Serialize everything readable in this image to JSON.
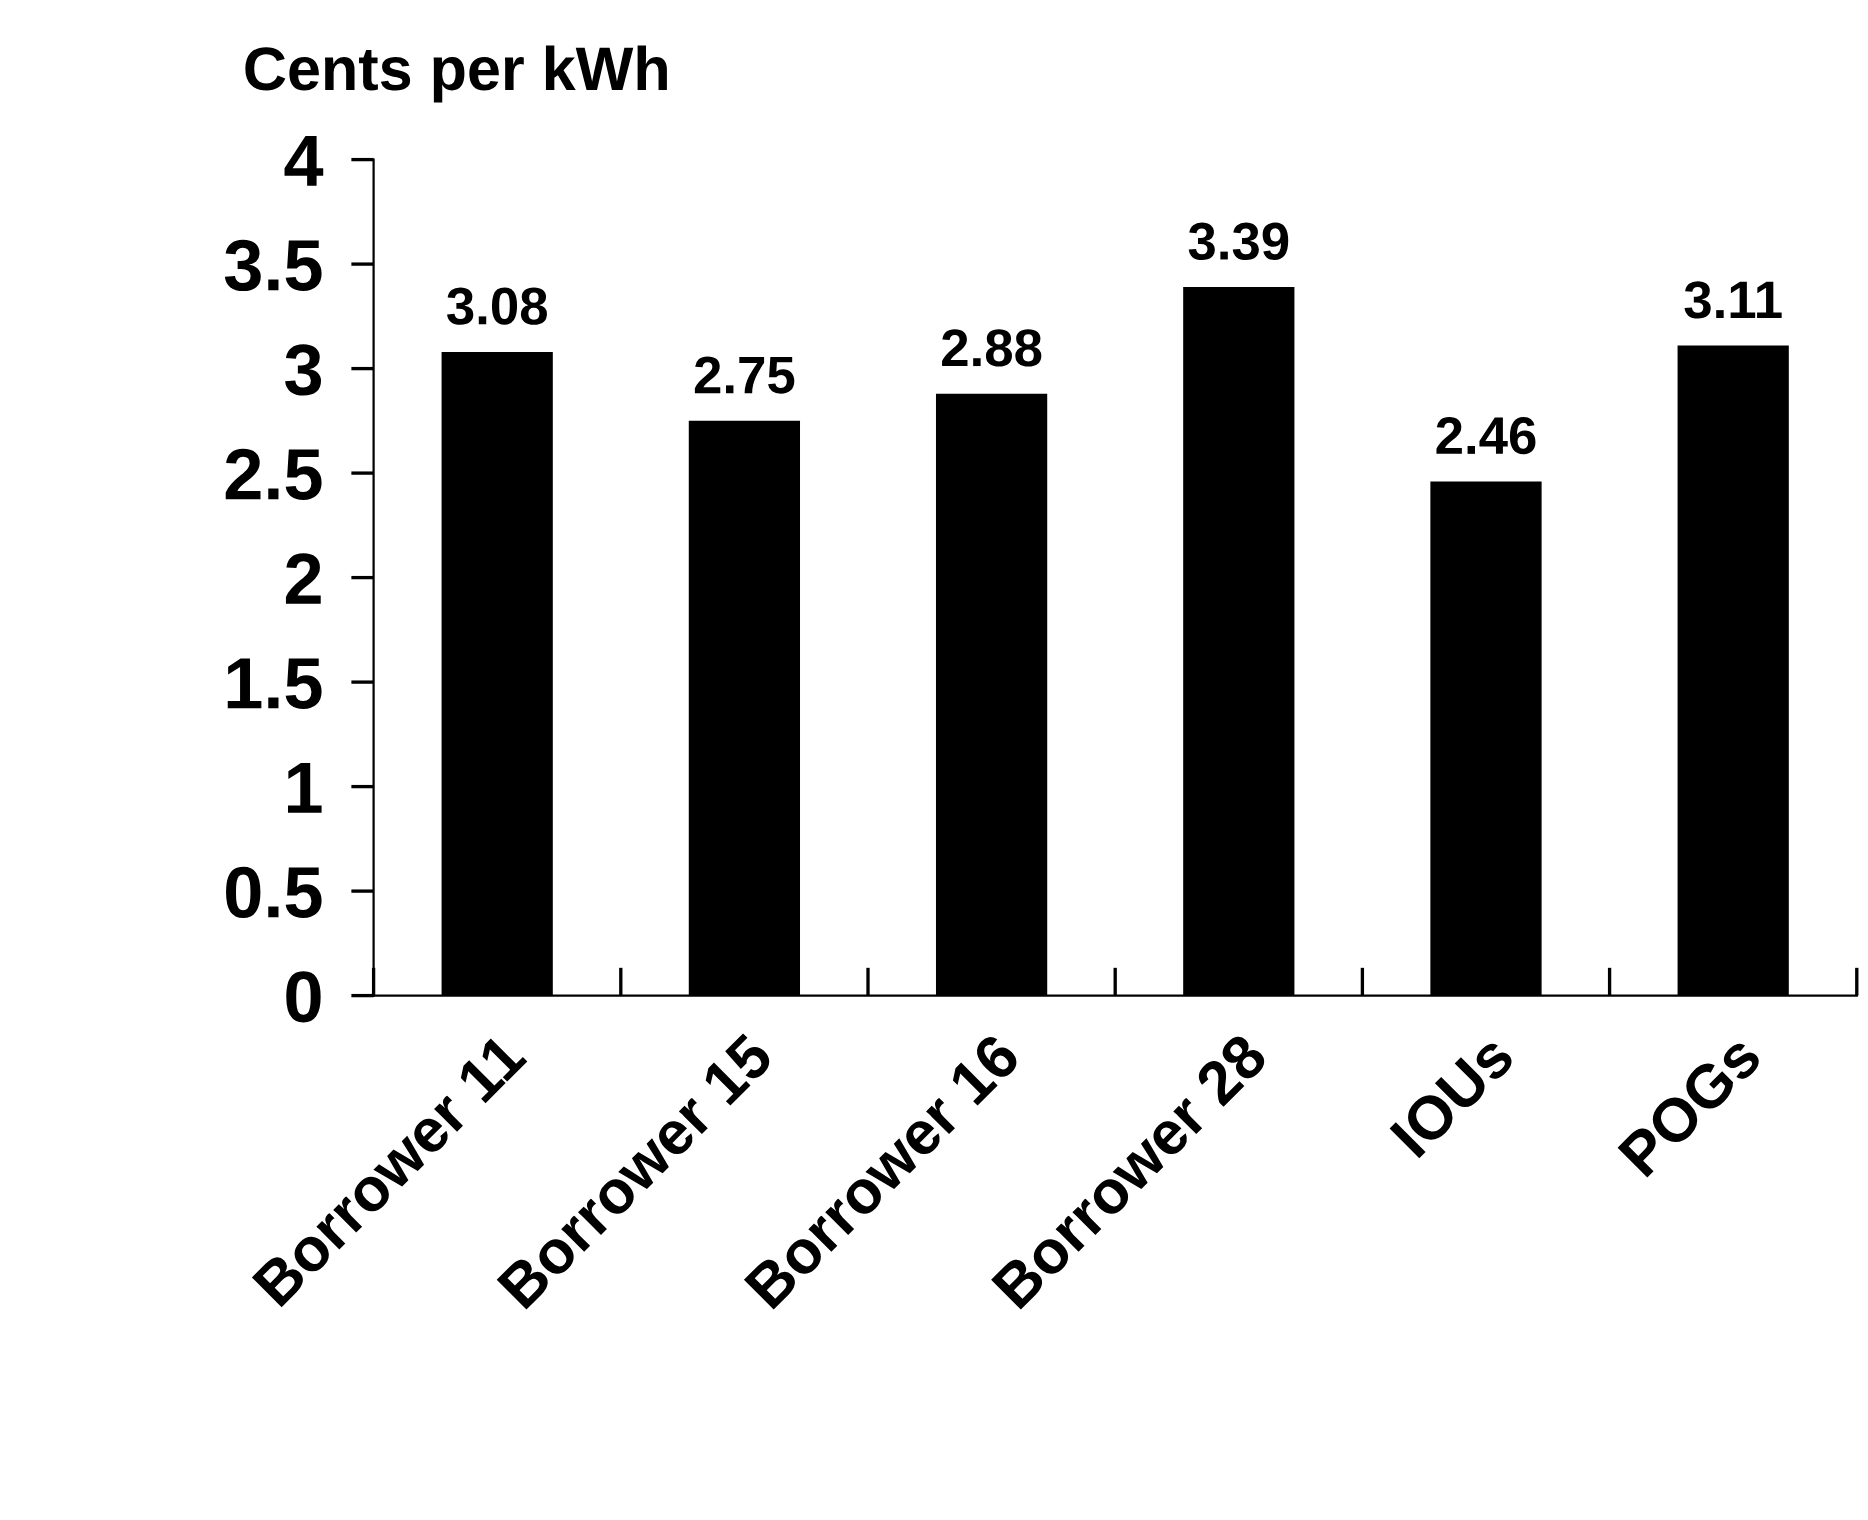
{
  "chart_data": {
    "type": "bar",
    "ylabel": "Cents per kWh",
    "categories": [
      "Borrower 11",
      "Borrower 15",
      "Borrower 16",
      "Borrower 28",
      "IOUs",
      "POGs"
    ],
    "values": [
      3.08,
      2.75,
      2.88,
      3.39,
      2.46,
      3.11
    ],
    "color": "#000000",
    "ylim": [
      0,
      4
    ],
    "yticks": [
      0,
      0.5,
      1,
      1.5,
      2,
      2.5,
      3,
      3.5,
      4
    ],
    "grid": false,
    "data_labels": true
  }
}
